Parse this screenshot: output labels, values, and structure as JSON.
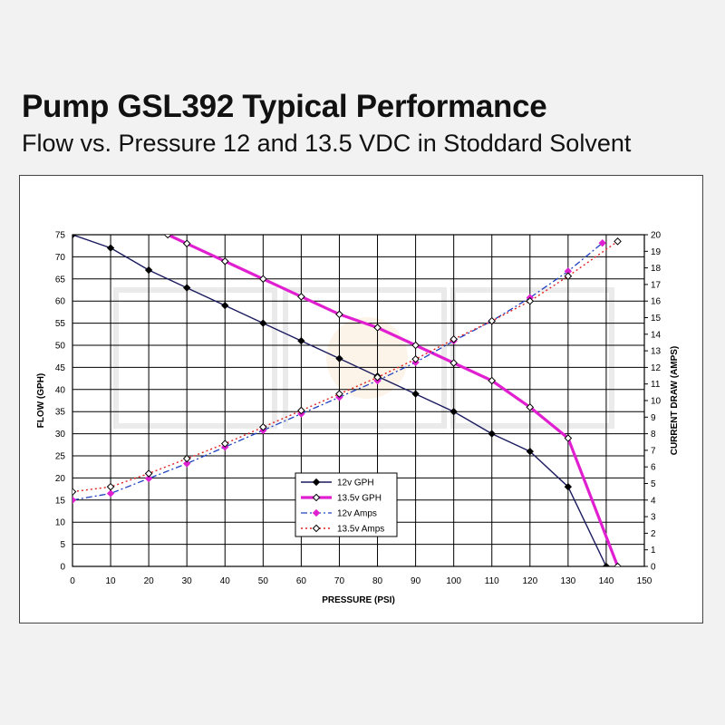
{
  "title": "Pump GSL392 Typical Performance",
  "subtitle": "Flow vs. Pressure 12 and 13.5 VDC in Stoddard Solvent",
  "chart_data": {
    "type": "line",
    "xlabel": "PRESSURE (PSI)",
    "ylabel": "FLOW (GPH)",
    "y2label": "CURRENT DRAW (AMPS)",
    "xlim": [
      0,
      150
    ],
    "ylim": [
      0,
      75
    ],
    "y2lim": [
      0,
      20
    ],
    "x_ticks": [
      "0",
      "10",
      "20",
      "30",
      "40",
      "50",
      "60",
      "70",
      "80",
      "90",
      "100",
      "110",
      "120",
      "130",
      "140",
      "150"
    ],
    "y_ticks": [
      "0",
      "5",
      "10",
      "15",
      "20",
      "25",
      "30",
      "35",
      "40",
      "45",
      "50",
      "55",
      "60",
      "65",
      "70",
      "75"
    ],
    "y2_ticks": [
      "0",
      "1",
      "2",
      "3",
      "4",
      "5",
      "6",
      "7",
      "8",
      "9",
      "10",
      "11",
      "12",
      "13",
      "14",
      "15",
      "16",
      "17",
      "18",
      "19",
      "20"
    ],
    "grid": true,
    "legend_position": "lower-center",
    "series": [
      {
        "name": "12v GPH",
        "axis": "left",
        "color": "#1a1a5e",
        "line_style": "solid",
        "marker": "filled-diamond",
        "x": [
          0,
          10,
          20,
          30,
          40,
          50,
          60,
          70,
          80,
          90,
          100,
          110,
          120,
          130,
          140
        ],
        "y": [
          75,
          72,
          67,
          63,
          59,
          55,
          51,
          47,
          43,
          39,
          35,
          30,
          26,
          18,
          0
        ]
      },
      {
        "name": "13.5v GPH",
        "axis": "left",
        "color": "#e020d0",
        "line_style": "solid-thick",
        "marker": "open-diamond",
        "x": [
          25,
          30,
          40,
          50,
          60,
          70,
          80,
          90,
          100,
          110,
          120,
          130,
          143
        ],
        "y": [
          75,
          73,
          69,
          65,
          61,
          57,
          54,
          50,
          46,
          42,
          36,
          29,
          0
        ]
      },
      {
        "name": "12v Amps",
        "axis": "right",
        "color": "#2040c0",
        "line_style": "dash-dot",
        "marker": "pink-diamond",
        "x": [
          0,
          10,
          20,
          30,
          40,
          50,
          60,
          70,
          80,
          90,
          100,
          110,
          120,
          130,
          139
        ],
        "y": [
          4.0,
          4.4,
          5.3,
          6.2,
          7.2,
          8.2,
          9.2,
          10.2,
          11.2,
          12.3,
          13.6,
          14.8,
          16.2,
          17.8,
          19.5
        ]
      },
      {
        "name": "13.5v Amps",
        "axis": "right",
        "color": "#e02020",
        "line_style": "dotted",
        "marker": "open-diamond",
        "x": [
          0,
          10,
          20,
          30,
          40,
          50,
          60,
          70,
          80,
          90,
          100,
          110,
          120,
          130,
          143
        ],
        "y": [
          4.5,
          4.8,
          5.6,
          6.5,
          7.4,
          8.4,
          9.4,
          10.4,
          11.4,
          12.5,
          13.7,
          14.8,
          16.0,
          17.5,
          19.6
        ]
      }
    ]
  }
}
